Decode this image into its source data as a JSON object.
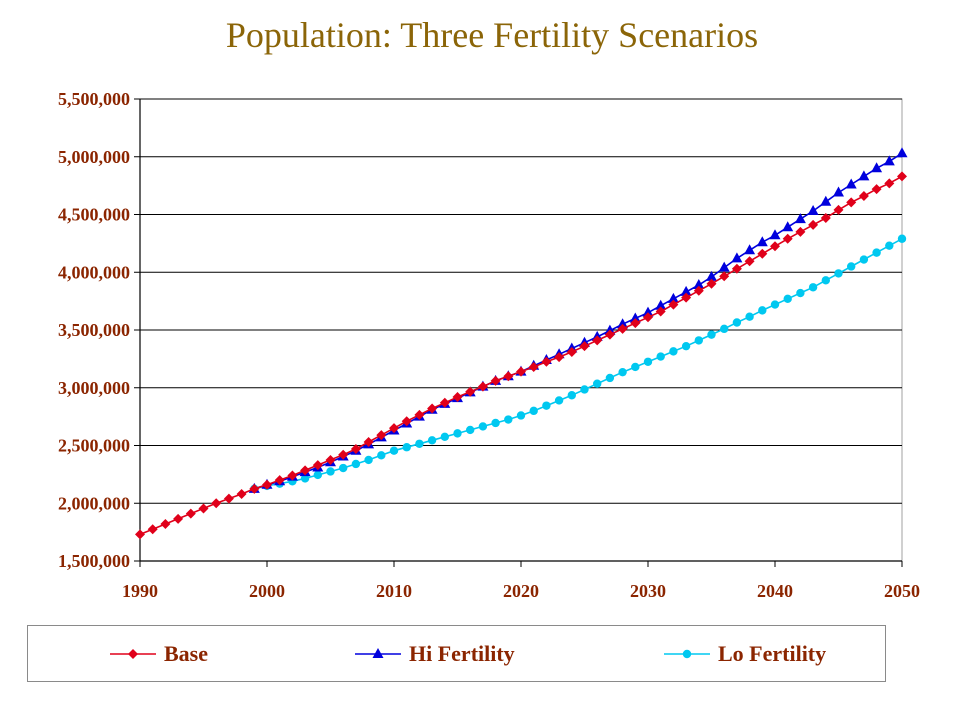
{
  "chart_data": {
    "type": "line",
    "title": "Population: Three Fertility Scenarios",
    "xlabel": "",
    "ylabel": "",
    "xlim": [
      1990,
      2050
    ],
    "ylim": [
      1500000,
      5500000
    ],
    "x_ticks": [
      "1990",
      "2000",
      "2010",
      "2020",
      "2030",
      "2040",
      "2050"
    ],
    "y_ticks": [
      "1,500,000",
      "2,000,000",
      "2,500,000",
      "3,000,000",
      "3,500,000",
      "4,000,000",
      "4,500,000",
      "5,000,000",
      "5,500,000"
    ],
    "grid": "horizontal",
    "legend_position": "bottom",
    "series": [
      {
        "name": "Base",
        "color": "#e0001a",
        "marker": "diamond",
        "points": [
          [
            1990,
            1730000
          ],
          [
            1991,
            1775000
          ],
          [
            1992,
            1820000
          ],
          [
            1993,
            1865000
          ],
          [
            1994,
            1910000
          ],
          [
            1995,
            1955000
          ],
          [
            1996,
            2000000
          ],
          [
            1997,
            2040000
          ],
          [
            1998,
            2080000
          ],
          [
            1999,
            2125000
          ],
          [
            2000,
            2160000
          ],
          [
            2001,
            2200000
          ],
          [
            2002,
            2240000
          ],
          [
            2003,
            2285000
          ],
          [
            2004,
            2330000
          ],
          [
            2005,
            2375000
          ],
          [
            2006,
            2420000
          ],
          [
            2007,
            2470000
          ],
          [
            2008,
            2530000
          ],
          [
            2009,
            2590000
          ],
          [
            2010,
            2650000
          ],
          [
            2011,
            2710000
          ],
          [
            2012,
            2765000
          ],
          [
            2013,
            2820000
          ],
          [
            2014,
            2870000
          ],
          [
            2015,
            2920000
          ],
          [
            2016,
            2965000
          ],
          [
            2017,
            3010000
          ],
          [
            2018,
            3060000
          ],
          [
            2019,
            3100000
          ],
          [
            2020,
            3140000
          ],
          [
            2021,
            3180000
          ],
          [
            2022,
            3225000
          ],
          [
            2023,
            3265000
          ],
          [
            2024,
            3310000
          ],
          [
            2025,
            3360000
          ],
          [
            2026,
            3410000
          ],
          [
            2027,
            3460000
          ],
          [
            2028,
            3510000
          ],
          [
            2029,
            3560000
          ],
          [
            2030,
            3610000
          ],
          [
            2031,
            3660000
          ],
          [
            2032,
            3720000
          ],
          [
            2033,
            3780000
          ],
          [
            2034,
            3840000
          ],
          [
            2035,
            3900000
          ],
          [
            2036,
            3965000
          ],
          [
            2037,
            4030000
          ],
          [
            2038,
            4095000
          ],
          [
            2039,
            4160000
          ],
          [
            2040,
            4225000
          ],
          [
            2041,
            4290000
          ],
          [
            2042,
            4350000
          ],
          [
            2043,
            4410000
          ],
          [
            2044,
            4470000
          ],
          [
            2045,
            4540000
          ],
          [
            2046,
            4605000
          ],
          [
            2047,
            4660000
          ],
          [
            2048,
            4720000
          ],
          [
            2049,
            4770000
          ],
          [
            2050,
            4830000
          ]
        ]
      },
      {
        "name": "Hi Fertility",
        "color": "#0000dd",
        "marker": "triangle",
        "points": [
          [
            1999,
            2125000
          ],
          [
            2000,
            2160000
          ],
          [
            2001,
            2190000
          ],
          [
            2002,
            2230000
          ],
          [
            2003,
            2270000
          ],
          [
            2004,
            2310000
          ],
          [
            2005,
            2355000
          ],
          [
            2006,
            2405000
          ],
          [
            2007,
            2455000
          ],
          [
            2008,
            2510000
          ],
          [
            2009,
            2570000
          ],
          [
            2010,
            2630000
          ],
          [
            2011,
            2690000
          ],
          [
            2012,
            2750000
          ],
          [
            2013,
            2810000
          ],
          [
            2014,
            2860000
          ],
          [
            2015,
            2910000
          ],
          [
            2016,
            2960000
          ],
          [
            2017,
            3010000
          ],
          [
            2018,
            3060000
          ],
          [
            2019,
            3100000
          ],
          [
            2020,
            3140000
          ],
          [
            2021,
            3190000
          ],
          [
            2022,
            3240000
          ],
          [
            2023,
            3290000
          ],
          [
            2024,
            3340000
          ],
          [
            2025,
            3390000
          ],
          [
            2026,
            3440000
          ],
          [
            2027,
            3495000
          ],
          [
            2028,
            3550000
          ],
          [
            2029,
            3600000
          ],
          [
            2030,
            3650000
          ],
          [
            2031,
            3710000
          ],
          [
            2032,
            3770000
          ],
          [
            2033,
            3830000
          ],
          [
            2034,
            3890000
          ],
          [
            2035,
            3960000
          ],
          [
            2036,
            4040000
          ],
          [
            2037,
            4120000
          ],
          [
            2038,
            4190000
          ],
          [
            2039,
            4260000
          ],
          [
            2040,
            4320000
          ],
          [
            2041,
            4390000
          ],
          [
            2042,
            4460000
          ],
          [
            2043,
            4530000
          ],
          [
            2044,
            4610000
          ],
          [
            2045,
            4690000
          ],
          [
            2046,
            4760000
          ],
          [
            2047,
            4830000
          ],
          [
            2048,
            4900000
          ],
          [
            2049,
            4960000
          ],
          [
            2050,
            5030000
          ]
        ]
      },
      {
        "name": "Lo Fertility",
        "color": "#00c8f0",
        "marker": "circle",
        "points": [
          [
            1999,
            2125000
          ],
          [
            2000,
            2150000
          ],
          [
            2001,
            2170000
          ],
          [
            2002,
            2190000
          ],
          [
            2003,
            2215000
          ],
          [
            2004,
            2245000
          ],
          [
            2005,
            2275000
          ],
          [
            2006,
            2305000
          ],
          [
            2007,
            2340000
          ],
          [
            2008,
            2375000
          ],
          [
            2009,
            2415000
          ],
          [
            2010,
            2455000
          ],
          [
            2011,
            2485000
          ],
          [
            2012,
            2515000
          ],
          [
            2013,
            2545000
          ],
          [
            2014,
            2575000
          ],
          [
            2015,
            2605000
          ],
          [
            2016,
            2635000
          ],
          [
            2017,
            2665000
          ],
          [
            2018,
            2695000
          ],
          [
            2019,
            2725000
          ],
          [
            2020,
            2760000
          ],
          [
            2021,
            2800000
          ],
          [
            2022,
            2845000
          ],
          [
            2023,
            2890000
          ],
          [
            2024,
            2935000
          ],
          [
            2025,
            2985000
          ],
          [
            2026,
            3035000
          ],
          [
            2027,
            3085000
          ],
          [
            2028,
            3135000
          ],
          [
            2029,
            3180000
          ],
          [
            2030,
            3225000
          ],
          [
            2031,
            3270000
          ],
          [
            2032,
            3315000
          ],
          [
            2033,
            3360000
          ],
          [
            2034,
            3410000
          ],
          [
            2035,
            3460000
          ],
          [
            2036,
            3510000
          ],
          [
            2037,
            3565000
          ],
          [
            2038,
            3615000
          ],
          [
            2039,
            3670000
          ],
          [
            2040,
            3720000
          ],
          [
            2041,
            3770000
          ],
          [
            2042,
            3820000
          ],
          [
            2043,
            3870000
          ],
          [
            2044,
            3930000
          ],
          [
            2045,
            3990000
          ],
          [
            2046,
            4050000
          ],
          [
            2047,
            4110000
          ],
          [
            2048,
            4170000
          ],
          [
            2049,
            4230000
          ],
          [
            2050,
            4290000
          ]
        ]
      }
    ]
  }
}
